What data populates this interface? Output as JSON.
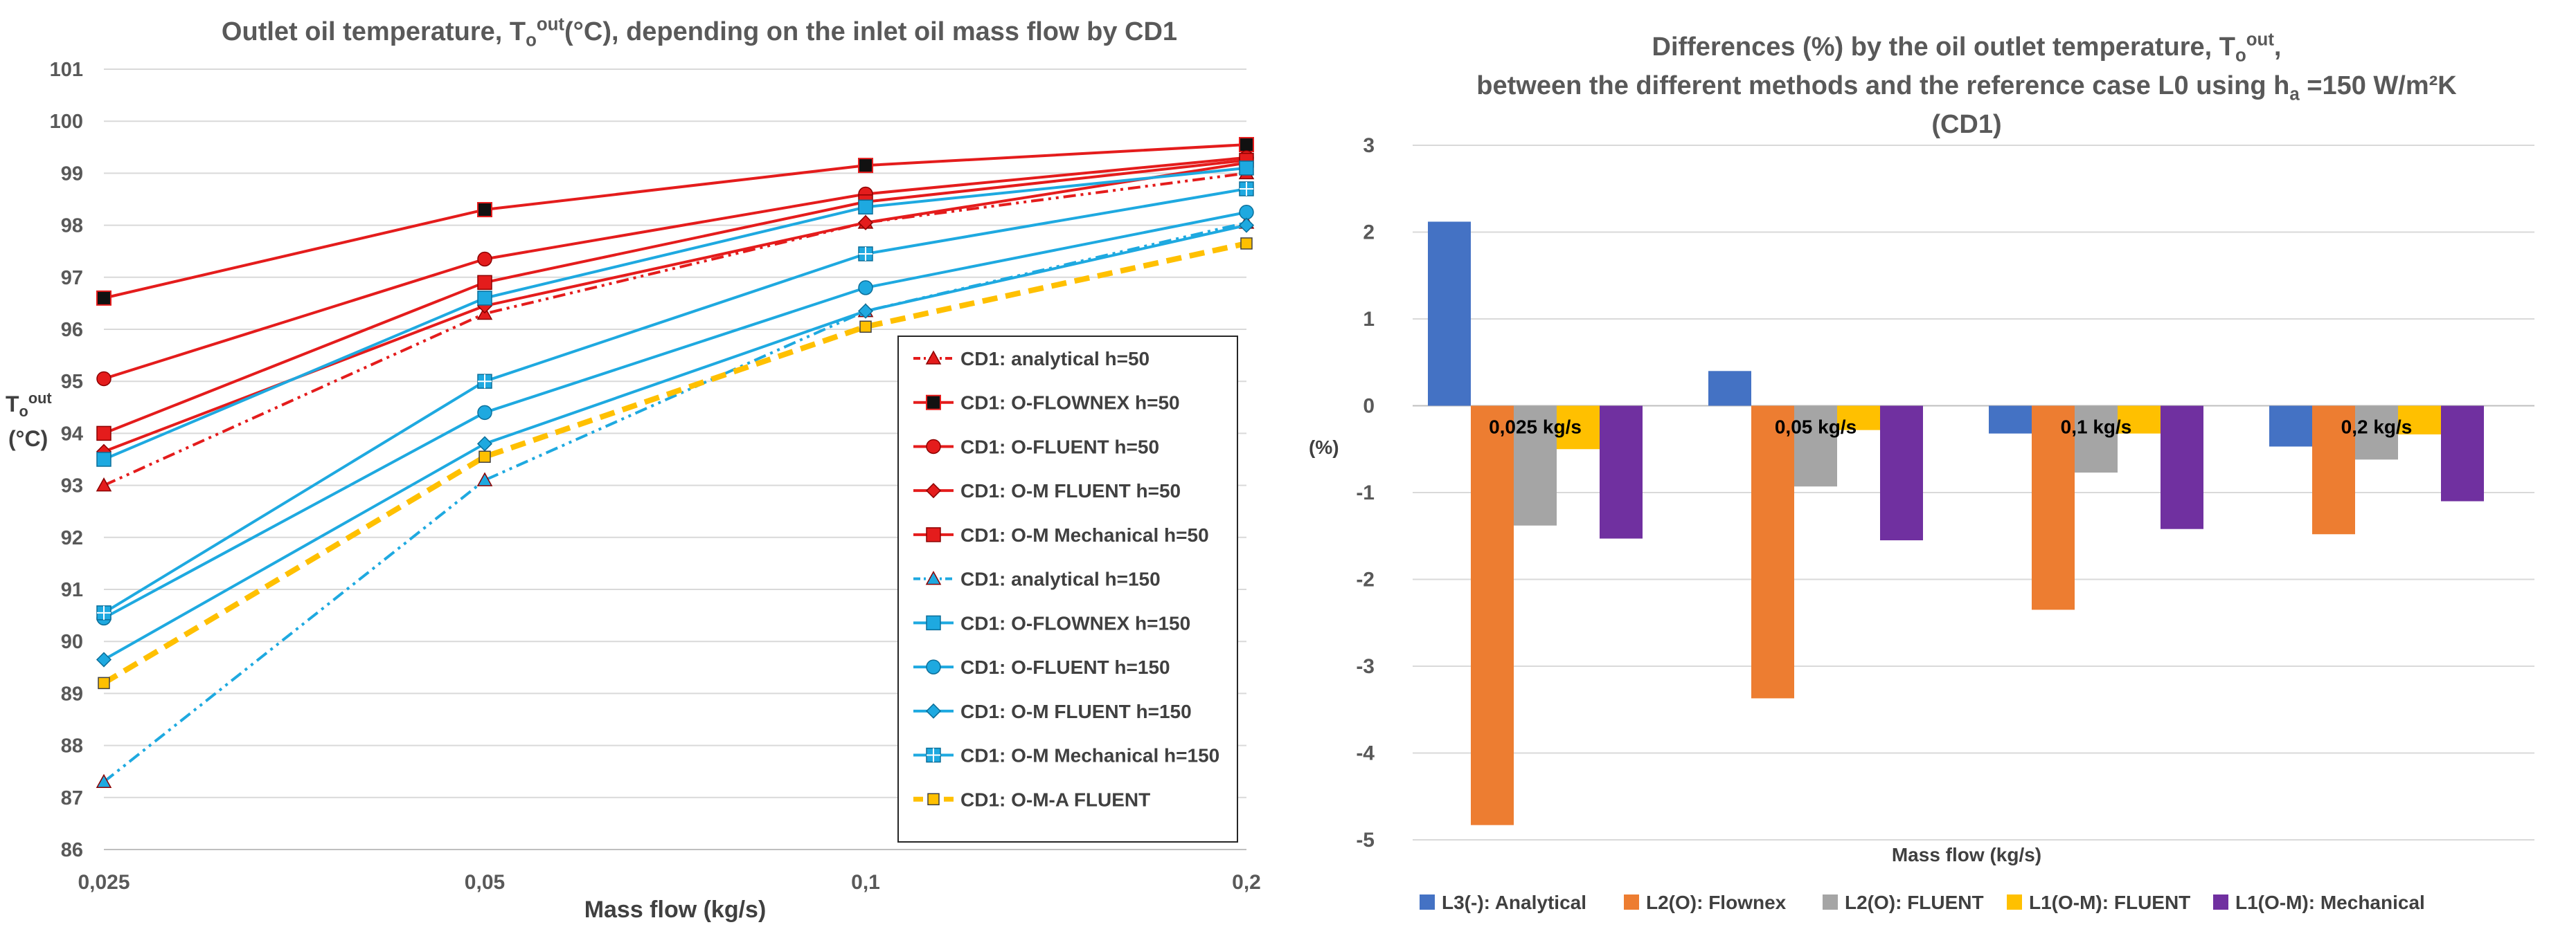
{
  "chart_data": [
    {
      "type": "line",
      "title": "Outlet oil temperature, To",
      "title_parts": {
        "prefix": "Outlet oil temperature, T",
        "sub": "o",
        "sup": "out",
        "suffix": "(°C), depending on the inlet oil mass flow by CD1"
      },
      "xlabel": "Mass flow (kg/s)",
      "ylabel": {
        "main": "T",
        "sub": "o",
        "sup": "out",
        "unit": "(°C)"
      },
      "categories": [
        "0,025",
        "0,05",
        "0,1",
        "0,2"
      ],
      "ylim": [
        86,
        101
      ],
      "yticks": [
        86,
        87,
        88,
        89,
        90,
        91,
        92,
        93,
        94,
        95,
        96,
        97,
        98,
        99,
        100,
        101
      ],
      "grid": true,
      "legend_position": "right",
      "series": [
        {
          "name": "CD1: analytical h=50",
          "values": [
            93.0,
            96.3,
            98.05,
            99.0
          ],
          "color": "#e41c1c",
          "dash": "dashdotdot",
          "marker": "triangle"
        },
        {
          "name": "CD1: O-FLOWNEX h=50",
          "values": [
            96.6,
            98.3,
            99.15,
            99.55
          ],
          "color": "#e41c1c",
          "dash": "solid",
          "marker": "square-black"
        },
        {
          "name": "CD1: O-FLUENT h=50",
          "values": [
            95.05,
            97.35,
            98.6,
            99.3
          ],
          "color": "#e41c1c",
          "dash": "solid",
          "marker": "circle"
        },
        {
          "name": "CD1: O-M FLUENT h=50",
          "values": [
            93.65,
            96.45,
            98.05,
            99.2
          ],
          "color": "#e41c1c",
          "dash": "solid",
          "marker": "diamond"
        },
        {
          "name": "CD1: O-M Mechanical h=50",
          "values": [
            94.0,
            96.9,
            98.45,
            99.25
          ],
          "color": "#e41c1c",
          "dash": "solid",
          "marker": "square"
        },
        {
          "name": "CD1: analytical h=150",
          "values": [
            87.3,
            93.1,
            96.35,
            98.05
          ],
          "color": "#1ea9e0",
          "dash": "dashdotdot",
          "marker": "triangle"
        },
        {
          "name": "CD1: O-FLOWNEX h=150",
          "values": [
            93.5,
            96.6,
            98.35,
            99.1
          ],
          "color": "#1ea9e0",
          "dash": "solid",
          "marker": "square"
        },
        {
          "name": "CD1: O-FLUENT h=150",
          "values": [
            90.45,
            94.4,
            96.8,
            98.25
          ],
          "color": "#1ea9e0",
          "dash": "solid",
          "marker": "circle"
        },
        {
          "name": "CD1: O-M FLUENT h=150",
          "values": [
            89.65,
            93.8,
            96.35,
            98.0
          ],
          "color": "#1ea9e0",
          "dash": "solid",
          "marker": "diamond"
        },
        {
          "name": "CD1: O-M Mechanical h=150",
          "values": [
            90.55,
            95.0,
            97.45,
            98.7
          ],
          "color": "#1ea9e0",
          "dash": "solid",
          "marker": "plus-square"
        },
        {
          "name": "CD1: O-M-A FLUENT",
          "values": [
            89.2,
            93.55,
            96.05,
            97.65
          ],
          "color": "#ffc000",
          "dash": "dashed",
          "marker": "square-yellow"
        }
      ]
    },
    {
      "type": "bar",
      "title_lines": [
        {
          "prefix": "Differences (%) by the oil outlet temperature, T",
          "sub": "o",
          "sup": "out",
          "suffix": ","
        },
        {
          "prefix": "between the different methods and the reference case L0 using h",
          "sub": "a",
          "sup": "",
          "suffix": " =150 W/m²K"
        },
        {
          "prefix": "(CD1)",
          "sub": "",
          "sup": "",
          "suffix": ""
        }
      ],
      "xlabel": "Mass flow (kg/s)",
      "ylabel": "(%)",
      "categories": [
        "0,025 kg/s",
        "0,05 kg/s",
        "0,1 kg/s",
        "0,2 kg/s"
      ],
      "ylim": [
        -5,
        3
      ],
      "yticks": [
        -5,
        -4,
        -3,
        -2,
        -1,
        0,
        1,
        2,
        3
      ],
      "grid": true,
      "legend_position": "bottom",
      "series": [
        {
          "name": "L3(-): Analytical",
          "values": [
            2.12,
            0.4,
            -0.32,
            -0.47
          ],
          "color": "#4472c4"
        },
        {
          "name": "L2(O): Flownex",
          "values": [
            -4.83,
            -3.37,
            -2.35,
            -1.48
          ],
          "color": "#ed7d31"
        },
        {
          "name": "L2(O): FLUENT",
          "values": [
            -1.38,
            -0.93,
            -0.77,
            -0.62
          ],
          "color": "#a5a5a5"
        },
        {
          "name": "L1(O-M): FLUENT",
          "values": [
            -0.5,
            -0.28,
            -0.32,
            -0.33
          ],
          "color": "#ffc000"
        },
        {
          "name": "L1(O-M): Mechanical",
          "values": [
            -1.53,
            -1.55,
            -1.42,
            -1.1
          ],
          "color": "#7030a0"
        }
      ]
    }
  ]
}
